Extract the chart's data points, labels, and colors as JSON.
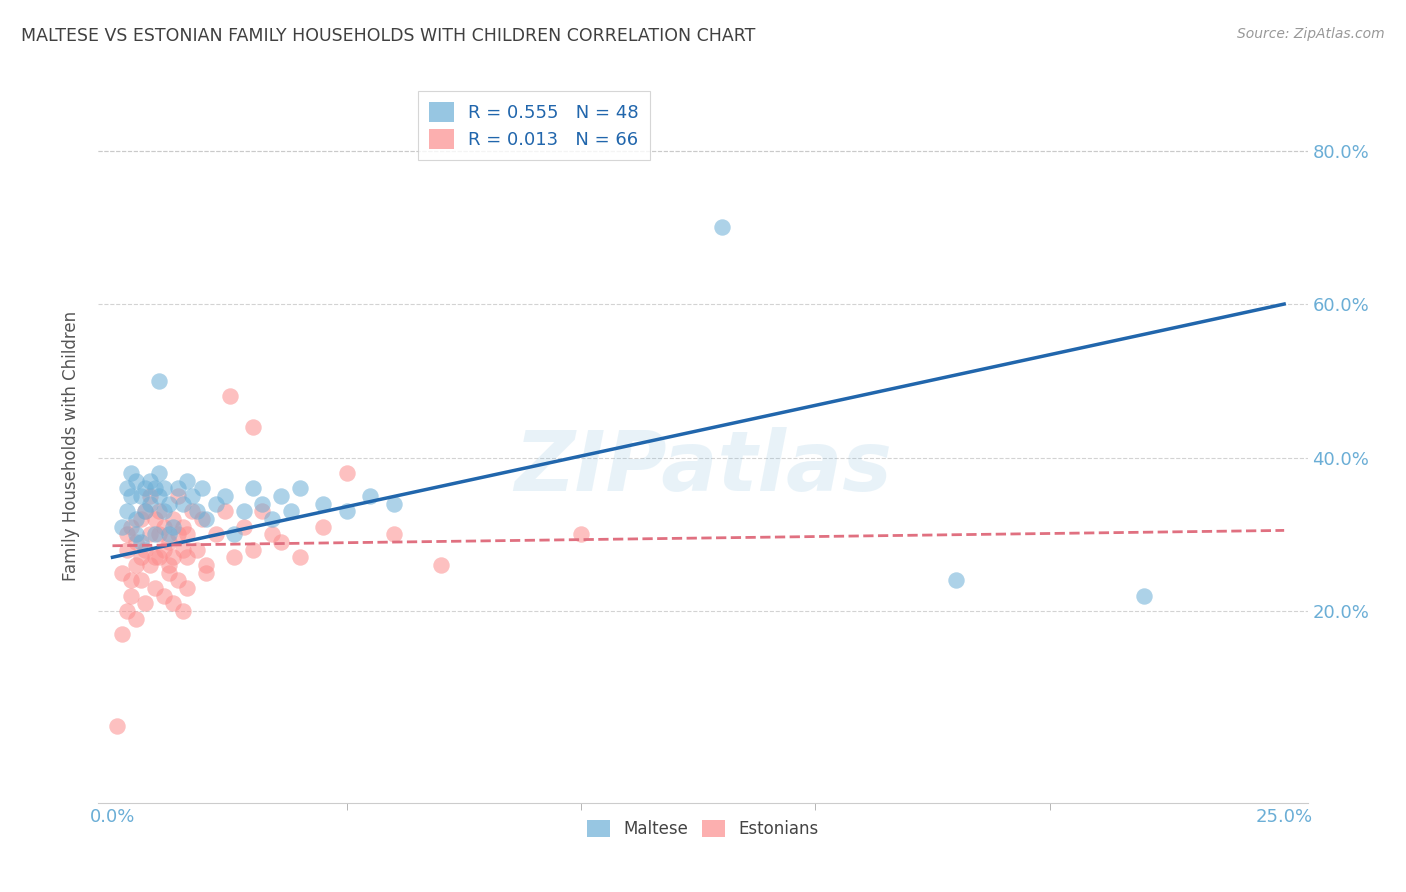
{
  "title": "MALTESE VS ESTONIAN FAMILY HOUSEHOLDS WITH CHILDREN CORRELATION CHART",
  "source": "Source: ZipAtlas.com",
  "ylabel": "Family Households with Children",
  "watermark": "ZIPatlas",
  "legend_entries": [
    {
      "label": "R = 0.555   N = 48",
      "color": "#6baed6"
    },
    {
      "label": "R = 0.013   N = 66",
      "color": "#fc8d8d"
    }
  ],
  "maltese_color": "#6baed6",
  "estonian_color": "#fc8d8d",
  "maltese_line_color": "#2166ac",
  "estonian_line_color": "#e07080",
  "background_color": "#ffffff",
  "grid_color": "#c8c8c8",
  "title_color": "#404040",
  "tick_color": "#6baed6",
  "xlim": [
    0.0,
    0.25
  ],
  "ylim": [
    0.0,
    0.88
  ],
  "ytick_values": [
    0.2,
    0.4,
    0.6,
    0.8
  ],
  "xtick_minor_positions": [
    0.05,
    0.1,
    0.15,
    0.2
  ],
  "maltese_line_x0": 0.0,
  "maltese_line_y0": 0.27,
  "maltese_line_x1": 0.25,
  "maltese_line_y1": 0.6,
  "estonian_line_x0": 0.0,
  "estonian_line_y0": 0.285,
  "estonian_line_x1": 0.25,
  "estonian_line_y1": 0.305,
  "maltese_pts_x": [
    0.002,
    0.003,
    0.003,
    0.004,
    0.004,
    0.005,
    0.005,
    0.005,
    0.006,
    0.006,
    0.007,
    0.007,
    0.008,
    0.008,
    0.009,
    0.009,
    0.01,
    0.01,
    0.011,
    0.011,
    0.012,
    0.012,
    0.013,
    0.014,
    0.015,
    0.016,
    0.017,
    0.018,
    0.019,
    0.02,
    0.022,
    0.024,
    0.026,
    0.028,
    0.03,
    0.032,
    0.034,
    0.036,
    0.038,
    0.04,
    0.045,
    0.05,
    0.055,
    0.06,
    0.01,
    0.13,
    0.18,
    0.22
  ],
  "maltese_pts_y": [
    0.31,
    0.36,
    0.33,
    0.38,
    0.35,
    0.32,
    0.37,
    0.3,
    0.35,
    0.29,
    0.36,
    0.33,
    0.37,
    0.34,
    0.36,
    0.3,
    0.35,
    0.38,
    0.33,
    0.36,
    0.3,
    0.34,
    0.31,
    0.36,
    0.34,
    0.37,
    0.35,
    0.33,
    0.36,
    0.32,
    0.34,
    0.35,
    0.3,
    0.33,
    0.36,
    0.34,
    0.32,
    0.35,
    0.33,
    0.36,
    0.34,
    0.33,
    0.35,
    0.34,
    0.5,
    0.7,
    0.24,
    0.22
  ],
  "estonian_pts_x": [
    0.001,
    0.002,
    0.002,
    0.003,
    0.003,
    0.004,
    0.004,
    0.005,
    0.005,
    0.006,
    0.006,
    0.007,
    0.007,
    0.008,
    0.008,
    0.009,
    0.009,
    0.01,
    0.01,
    0.011,
    0.011,
    0.012,
    0.012,
    0.013,
    0.013,
    0.014,
    0.014,
    0.015,
    0.015,
    0.016,
    0.016,
    0.017,
    0.018,
    0.019,
    0.02,
    0.022,
    0.024,
    0.026,
    0.028,
    0.03,
    0.032,
    0.034,
    0.036,
    0.04,
    0.045,
    0.05,
    0.06,
    0.07,
    0.003,
    0.004,
    0.005,
    0.006,
    0.007,
    0.008,
    0.009,
    0.01,
    0.011,
    0.012,
    0.013,
    0.014,
    0.015,
    0.016,
    0.02,
    0.025,
    0.03,
    0.1
  ],
  "estonian_pts_y": [
    0.05,
    0.17,
    0.25,
    0.28,
    0.3,
    0.24,
    0.31,
    0.26,
    0.29,
    0.32,
    0.27,
    0.33,
    0.28,
    0.35,
    0.3,
    0.32,
    0.27,
    0.3,
    0.33,
    0.28,
    0.31,
    0.26,
    0.29,
    0.32,
    0.27,
    0.3,
    0.35,
    0.28,
    0.31,
    0.27,
    0.3,
    0.33,
    0.28,
    0.32,
    0.26,
    0.3,
    0.33,
    0.27,
    0.31,
    0.28,
    0.33,
    0.3,
    0.29,
    0.27,
    0.31,
    0.38,
    0.3,
    0.26,
    0.2,
    0.22,
    0.19,
    0.24,
    0.21,
    0.26,
    0.23,
    0.27,
    0.22,
    0.25,
    0.21,
    0.24,
    0.2,
    0.23,
    0.25,
    0.48,
    0.44,
    0.3
  ]
}
